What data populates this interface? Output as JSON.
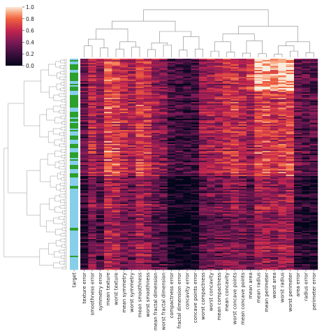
{
  "chart_data": {
    "type": "heatmap",
    "kind": "clustermap",
    "colorbar": {
      "ticks": [
        "1.0",
        "0.8",
        "0.6",
        "0.4",
        "0.2",
        "0.0"
      ],
      "range": [
        0.0,
        1.0
      ],
      "colormap": "rocket",
      "placement": "top-left"
    },
    "row_side_colors": {
      "label": "target",
      "colors": {
        "class_0": "#2ca02c",
        "class_1": "#87ceeb"
      }
    },
    "columns": [
      "texture error",
      "smoothness error",
      "symmetry error",
      "mean texture",
      "worst texture",
      "mean symmetry",
      "worst symmetry",
      "mean smoothness",
      "worst smoothness",
      "mean fractal dimension",
      "worst fractal dimension",
      "compactness error",
      "fractal dimension error",
      "concavity error",
      "concave points error",
      "worst compactness",
      "worst concavity",
      "mean compactness",
      "mean concavity",
      "worst concave points",
      "mean concave points",
      "mean area",
      "mean radius",
      "mean perimeter",
      "worst area",
      "worst radius",
      "worst perimeter",
      "area error",
      "radius error",
      "perimeter error"
    ],
    "column_levels": [
      0.2,
      0.45,
      0.3,
      0.6,
      0.55,
      0.45,
      0.4,
      0.55,
      0.5,
      0.35,
      0.3,
      0.15,
      0.12,
      0.12,
      0.15,
      0.35,
      0.4,
      0.4,
      0.45,
      0.5,
      0.45,
      0.35,
      0.55,
      0.55,
      0.5,
      0.55,
      0.55,
      0.2,
      0.15,
      0.15
    ],
    "column_dendrogram": "shown",
    "row_dendrogram": "shown",
    "n_rows": 569,
    "grid": false
  }
}
